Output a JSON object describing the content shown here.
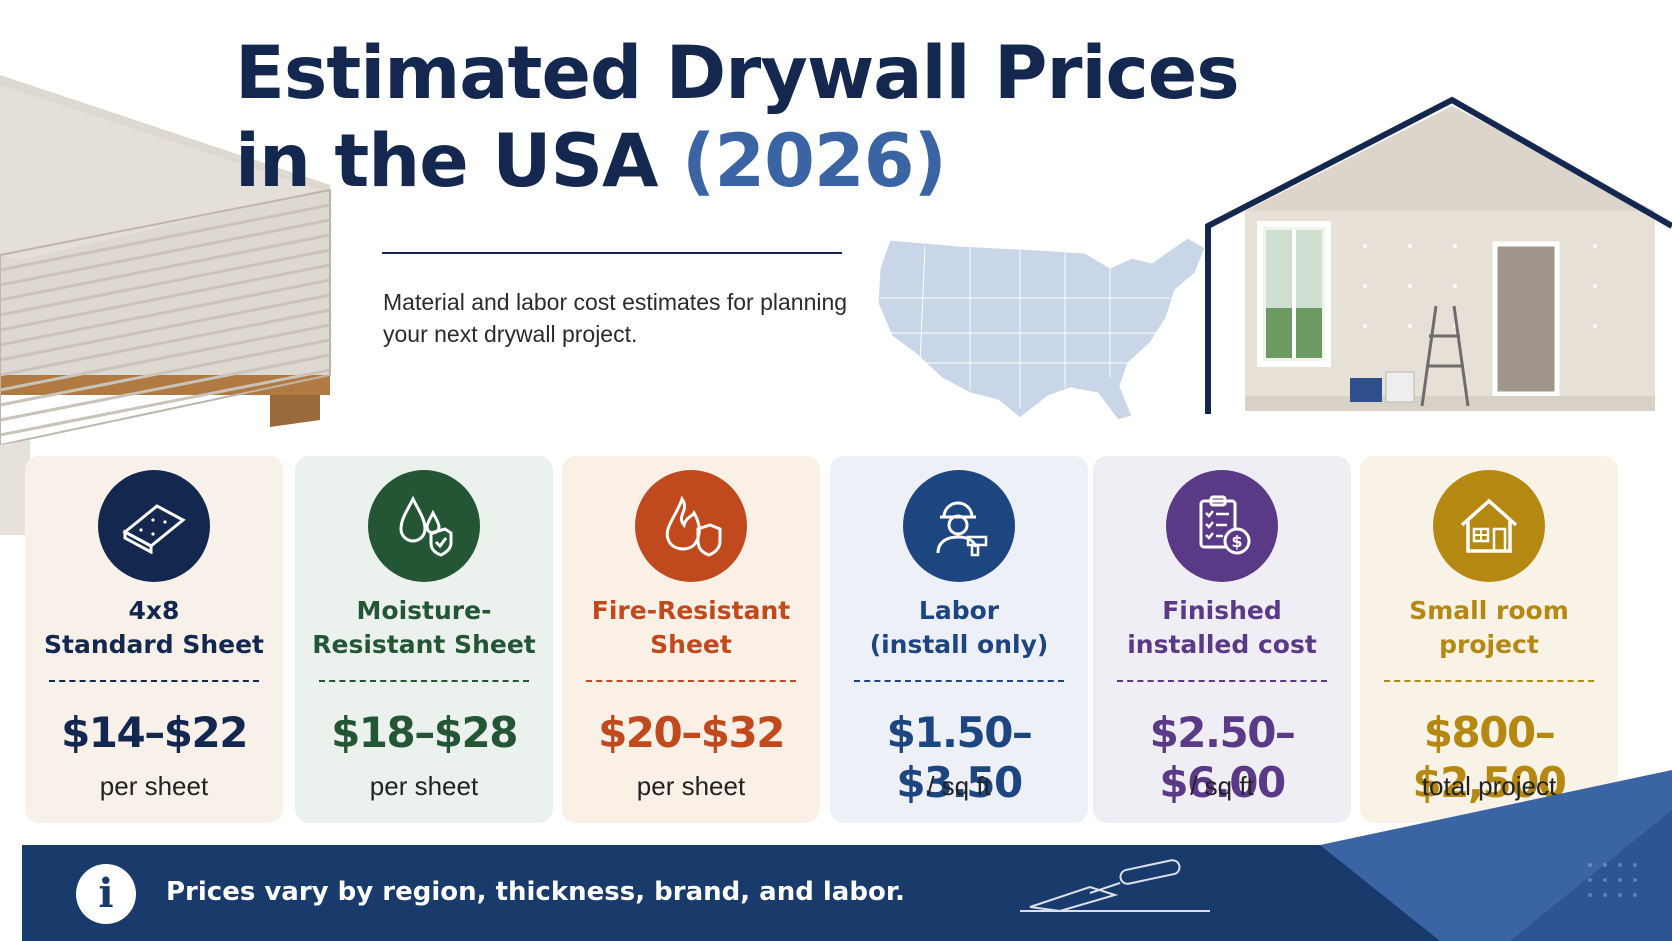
{
  "header": {
    "title_line1": "Estimated Drywall Prices",
    "title_line2_prefix": "in the USA ",
    "title_year": "(2026)",
    "subtitle": "Material and labor cost estimates for planning your next drywall project."
  },
  "colors": {
    "navy": "#14284f",
    "accent_blue": "#3a64a4",
    "footer_bg": "#183b6b"
  },
  "cards": [
    {
      "icon": "drywall-sheet-icon",
      "label": "4x8\nStandard Sheet",
      "price": "$14–$22",
      "unit": "per sheet",
      "color": "#14284f",
      "bg": "#f7f1ea"
    },
    {
      "icon": "water-drop-shield-icon",
      "label": "Moisture-\nResistant Sheet",
      "price": "$18–$28",
      "unit": "per sheet",
      "color": "#245636",
      "bg": "#ebf1ed"
    },
    {
      "icon": "flame-shield-icon",
      "label": "Fire-Resistant\nSheet",
      "price": "$20–$32",
      "unit": "per sheet",
      "color": "#c04a1e",
      "bg": "#fbf0e5"
    },
    {
      "icon": "worker-drill-icon",
      "label": "Labor\n(install only)",
      "price": "$1.50–$3.50",
      "unit": "/ sq ft",
      "color": "#1d4680",
      "bg": "#edf0f6"
    },
    {
      "icon": "clipboard-dollar-icon",
      "label": "Finished\ninstalled cost",
      "price": "$2.50–$6.00",
      "unit": "/ sq ft",
      "color": "#5a3a86",
      "bg": "#f0eef5"
    },
    {
      "icon": "house-icon",
      "label": "Small room\nproject",
      "price": "$800–$2,500",
      "unit": "total project",
      "color": "#b58812",
      "bg": "#f9f2e6"
    }
  ],
  "footer": {
    "info_icon": "info-icon",
    "note": "Prices vary by region, thickness, brand, and labor."
  }
}
